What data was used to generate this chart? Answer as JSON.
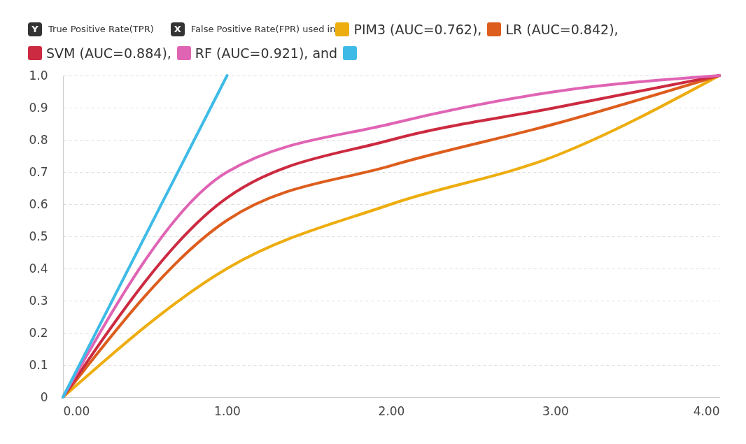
{
  "chart_data": {
    "type": "line",
    "xlabel": "False Positive Rate(FPR) used in",
    "ylabel": "True Positive Rate(TPR)",
    "annotations": [
      "Y",
      "X"
    ],
    "x": [
      0,
      1,
      2,
      3,
      4
    ],
    "series": [
      {
        "name": "PIM3 (AUC=0.762),",
        "color": "#edad0f",
        "values": [
          0,
          0.4,
          0.6,
          0.75,
          1.0
        ]
      },
      {
        "name": "LR (AUC=0.842),",
        "color": "#dd5d1d",
        "values": [
          0,
          0.55,
          0.72,
          0.85,
          1.0
        ]
      },
      {
        "name": "SVM (AUC=0.884),",
        "color": "#cc2a40",
        "values": [
          0,
          0.62,
          0.8,
          0.9,
          1.0
        ]
      },
      {
        "name": "RF (AUC=0.921), and",
        "color": "#e064b4",
        "values": [
          0,
          0.7,
          0.85,
          0.95,
          1.0
        ]
      },
      {
        "color": "#3dbbe6",
        "x": [
          0,
          1
        ],
        "values": [
          0,
          1
        ]
      }
    ],
    "xlim": [
      0,
      4
    ],
    "ylim": [
      0,
      1
    ],
    "xticks": [
      {
        "value": 0,
        "label": "0.00"
      },
      {
        "value": 1,
        "label": "1.00"
      },
      {
        "value": 2,
        "label": "2.00"
      },
      {
        "value": 3,
        "label": "3.00"
      },
      {
        "value": 4,
        "label": "4.00"
      }
    ],
    "yticks": [
      0,
      0.1,
      0.2,
      0.3,
      0.4,
      0.5,
      0.6,
      0.7,
      0.8,
      0.9,
      {
        "value": 1,
        "label": "1.0"
      }
    ],
    "grid": "y",
    "legend": "top left",
    "line_style": "solid",
    "marker": "none"
  }
}
